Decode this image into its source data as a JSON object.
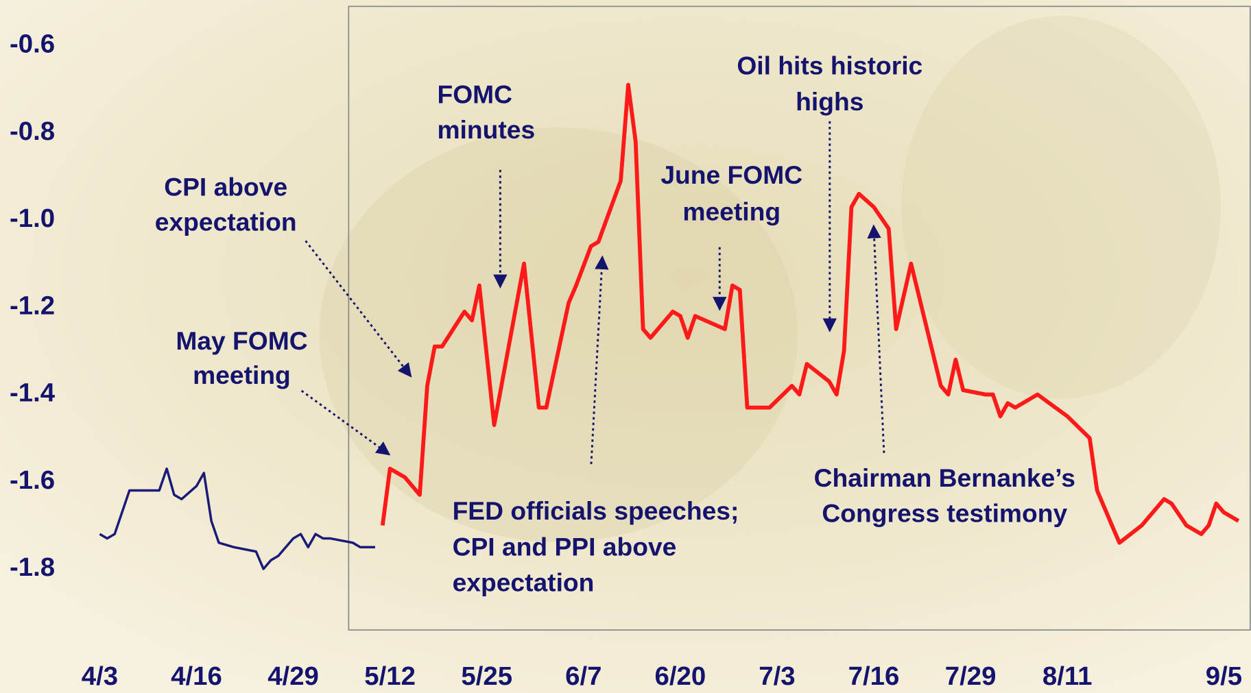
{
  "chart_data": {
    "type": "line",
    "xlim": [
      "4/3",
      "9/5"
    ],
    "xticks": [
      "4/3",
      "4/16",
      "4/29",
      "5/12",
      "5/25",
      "6/7",
      "6/20",
      "7/3",
      "7/16",
      "7/29",
      "8/11",
      "9/5"
    ],
    "ylim": [
      -1.94,
      -0.51
    ],
    "yticks": [
      -0.6,
      -0.8,
      {
        "value": -1,
        "label": "-1.0"
      },
      -1.2,
      -1.4,
      -1.6,
      -1.8
    ],
    "grid": false,
    "series": [
      {
        "color": "#1a1a78",
        "width": 3,
        "x": [
          "4/3",
          "4/4",
          "4/5",
          "4/7",
          "4/10",
          "4/11",
          "4/12",
          "4/13",
          "4/14",
          "4/16",
          "4/17",
          "4/18",
          "4/19",
          "4/21",
          "4/24",
          "4/25",
          "4/26",
          "4/27",
          "4/28",
          "4/29",
          "4/30",
          "5/1",
          "5/2",
          "5/3",
          "5/4",
          "5/7",
          "5/8",
          "5/10"
        ],
        "values": [
          -1.72,
          -1.73,
          -1.72,
          -1.62,
          -1.62,
          -1.62,
          -1.57,
          -1.63,
          -1.64,
          -1.61,
          -1.58,
          -1.69,
          -1.74,
          -1.75,
          -1.76,
          -1.8,
          -1.78,
          -1.77,
          -1.75,
          -1.73,
          -1.72,
          -1.75,
          -1.72,
          -1.73,
          -1.73,
          -1.74,
          -1.75,
          -1.75
        ]
      },
      {
        "color": "#ff1a1a",
        "width": 5,
        "x": [
          "5/11",
          "5/12",
          "5/14",
          "5/16",
          "5/17",
          "5/18",
          "5/19",
          "5/22",
          "5/23",
          "5/24",
          "5/26",
          "5/30",
          "6/1",
          "6/2",
          "6/5",
          "6/6",
          "6/8",
          "6/9",
          "6/12",
          "6/13",
          "6/14",
          "6/15",
          "6/16",
          "6/19",
          "6/20",
          "6/21",
          "6/22",
          "6/26",
          "6/27",
          "6/28",
          "6/29",
          "7/2",
          "7/5",
          "7/6",
          "7/7",
          "7/10",
          "7/11",
          "7/12",
          "7/13",
          "7/14",
          "7/16",
          "7/18",
          "7/19",
          "7/21",
          "7/25",
          "7/26",
          "7/27",
          "7/28",
          "7/31",
          "8/1",
          "8/2",
          "8/3",
          "8/4",
          "8/7",
          "8/11",
          "8/14",
          "8/15",
          "8/17",
          "8/18",
          "8/21",
          "8/24",
          "8/25",
          "8/27",
          "8/29",
          "8/30",
          "8/31",
          "9/1",
          "9/3"
        ],
        "values": [
          -1.7,
          -1.57,
          -1.59,
          -1.63,
          -1.38,
          -1.29,
          -1.29,
          -1.21,
          -1.23,
          -1.15,
          -1.47,
          -1.1,
          -1.43,
          -1.43,
          -1.19,
          -1.15,
          -1.06,
          -1.05,
          -0.91,
          -0.69,
          -0.82,
          -1.25,
          -1.27,
          -1.21,
          -1.22,
          -1.27,
          -1.22,
          -1.25,
          -1.15,
          -1.16,
          -1.43,
          -1.43,
          -1.38,
          -1.4,
          -1.33,
          -1.37,
          -1.4,
          -1.3,
          -0.97,
          -0.94,
          -0.97,
          -1.02,
          -1.25,
          -1.1,
          -1.38,
          -1.4,
          -1.32,
          -1.39,
          -1.4,
          -1.4,
          -1.45,
          -1.42,
          -1.43,
          -1.4,
          -1.45,
          -1.5,
          -1.62,
          -1.7,
          -1.74,
          -1.7,
          -1.64,
          -1.65,
          -1.7,
          -1.72,
          -1.7,
          -1.65,
          -1.67,
          -1.69
        ]
      }
    ],
    "annotations": [
      {
        "text": [
          "CPI above",
          "expectation"
        ]
      },
      {
        "text": [
          "May FOMC",
          "meeting"
        ]
      },
      {
        "text": [
          "FOMC",
          "minutes"
        ]
      },
      {
        "text": [
          "June FOMC",
          "meeting"
        ]
      },
      {
        "text": [
          "Oil hits historic",
          "highs"
        ]
      },
      {
        "text": [
          "FED officials speeches;",
          "CPI and PPI above",
          "expectation"
        ]
      },
      {
        "text": [
          "Chairman Bernanke’s",
          "Congress testimony"
        ]
      }
    ]
  }
}
